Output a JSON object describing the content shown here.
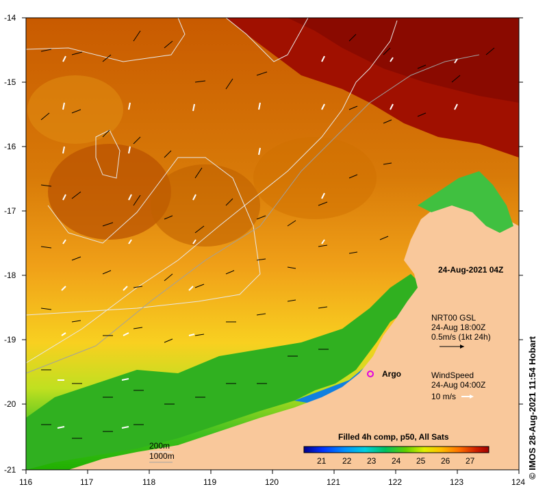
{
  "map": {
    "timestamp": "24-Aug-2021 04Z",
    "x_ticks": [
      "116",
      "117",
      "118",
      "119",
      "120",
      "121",
      "122",
      "123",
      "124"
    ],
    "y_ticks": [
      "-14",
      "-15",
      "-16",
      "-17",
      "-18",
      "-19",
      "-20",
      "-21"
    ],
    "currents": {
      "label_1": "NRT00 GSL",
      "label_2": "24-Aug 18:00Z",
      "label_3": "0.5m/s (1kt 24h)"
    },
    "wind": {
      "label_1": "WindSpeed",
      "label_2": "24-Aug 04:00Z",
      "label_3": "10 m/s"
    },
    "argo_label": "Argo",
    "isobath_1": "200m",
    "isobath_2": "1000m",
    "colorbar": {
      "title": "Filled 4h comp, p50, All Sats",
      "ticks": [
        "21",
        "22",
        "23",
        "24",
        "25",
        "26",
        "27"
      ],
      "colors": [
        "#00008b",
        "#0000ff",
        "#0080ff",
        "#00c8ff",
        "#00e0a0",
        "#00c000",
        "#80e000",
        "#ffff00",
        "#ffc000",
        "#ff8000",
        "#d05000",
        "#a01000",
        "#800000"
      ]
    },
    "credit": "IMOS 28-Aug-2021 11:54 Hobart",
    "copyright_symbol": "©"
  }
}
